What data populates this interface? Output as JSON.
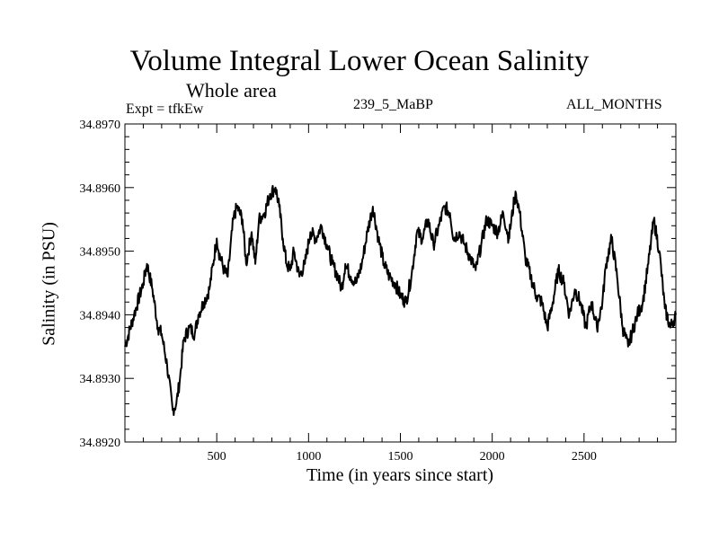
{
  "chart_data": {
    "type": "line",
    "title": "Volume Integral Lower Ocean Salinity",
    "subtitle": "Whole area",
    "experiment": "Expt = tfkEw",
    "run_id": "239_5_MaBP",
    "months": "ALL_MONTHS",
    "xlabel": "Time (in years since start)",
    "ylabel": "Salinity (in PSU)",
    "xlim": [
      0,
      3000
    ],
    "ylim": [
      34.892,
      34.897
    ],
    "x_ticks": [
      500,
      1000,
      1500,
      2000,
      2500
    ],
    "x_tick_labels": [
      "500",
      "1000",
      "1500",
      "2000",
      "2500"
    ],
    "y_ticks": [
      34.892,
      34.893,
      34.894,
      34.895,
      34.896,
      34.897
    ],
    "y_tick_labels": [
      "34.8920",
      "34.8930",
      "34.8940",
      "34.8950",
      "34.8960",
      "34.8970"
    ],
    "grid": false,
    "line_color": "#000000",
    "series": [
      {
        "x": [
          0,
          50,
          100,
          120,
          150,
          180,
          200,
          230,
          260,
          280,
          300,
          320,
          350,
          380,
          400,
          430,
          460,
          500,
          510,
          540,
          560,
          590,
          610,
          640,
          660,
          690,
          710,
          730,
          760,
          790,
          820,
          840,
          860,
          880,
          900,
          920,
          950,
          980,
          1010,
          1040,
          1070,
          1100,
          1130,
          1160,
          1180,
          1200,
          1230,
          1260,
          1290,
          1320,
          1350,
          1380,
          1410,
          1440,
          1470,
          1500,
          1530,
          1560,
          1590,
          1620,
          1650,
          1680,
          1710,
          1740,
          1770,
          1790,
          1820,
          1850,
          1880,
          1910,
          1940,
          1970,
          2000,
          2030,
          2060,
          2090,
          2120,
          2130,
          2150,
          2180,
          2210,
          2240,
          2270,
          2300,
          2330,
          2360,
          2390,
          2420,
          2450,
          2480,
          2510,
          2540,
          2570,
          2600,
          2620,
          2650,
          2680,
          2710,
          2740,
          2760,
          2790,
          2820,
          2850,
          2880,
          2910,
          2940,
          2970,
          3000
        ],
        "y": [
          34.8935,
          34.894,
          34.8945,
          34.8948,
          34.8944,
          34.8938,
          34.8937,
          34.8932,
          34.8925,
          34.8926,
          34.893,
          34.8936,
          34.8938,
          34.8937,
          34.894,
          34.8942,
          34.8944,
          34.8952,
          34.895,
          34.8947,
          34.8946,
          34.8955,
          34.8957,
          34.8955,
          34.8948,
          34.8953,
          34.8948,
          34.8955,
          34.8956,
          34.8959,
          34.896,
          34.8957,
          34.8952,
          34.8948,
          34.8947,
          34.895,
          34.8946,
          34.8948,
          34.8953,
          34.8952,
          34.8954,
          34.8951,
          34.8948,
          34.8946,
          34.8944,
          34.8948,
          34.8946,
          34.8945,
          34.8948,
          34.8953,
          34.8957,
          34.8952,
          34.8948,
          34.8946,
          34.8945,
          34.8943,
          34.8942,
          34.8946,
          34.8953,
          34.8952,
          34.8955,
          34.8951,
          34.8954,
          34.8957,
          34.8956,
          34.8952,
          34.8953,
          34.8951,
          34.8949,
          34.8947,
          34.8951,
          34.8955,
          34.8954,
          34.8953,
          34.8956,
          34.8952,
          34.8958,
          34.8959,
          34.8956,
          34.8949,
          34.8946,
          34.8943,
          34.8942,
          34.8938,
          34.8942,
          34.8947,
          34.8945,
          34.894,
          34.8944,
          34.8942,
          34.8938,
          34.8942,
          34.8938,
          34.8942,
          34.8948,
          34.8952,
          34.8946,
          34.8938,
          34.8935,
          34.8937,
          34.894,
          34.8942,
          34.8948,
          34.8955,
          34.895,
          34.8941,
          34.8938,
          34.894
        ]
      }
    ]
  }
}
